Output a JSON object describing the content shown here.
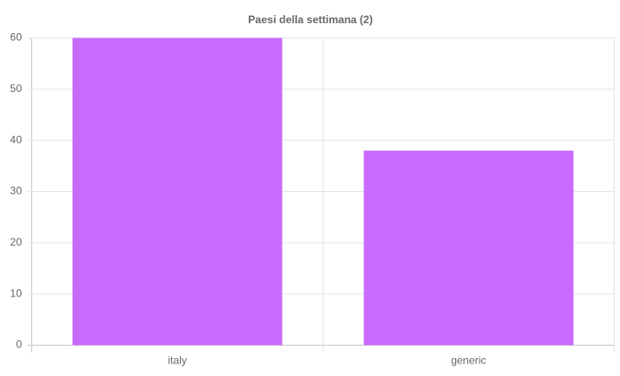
{
  "chart_data": {
    "type": "bar",
    "title": "Paesi della settimana (2)",
    "categories": [
      "italy",
      "generic"
    ],
    "values": [
      60,
      38
    ],
    "color": "#c86bfc",
    "ylim": [
      0,
      60
    ],
    "yticks": [
      0,
      10,
      20,
      30,
      40,
      50,
      60
    ],
    "grid": true
  }
}
